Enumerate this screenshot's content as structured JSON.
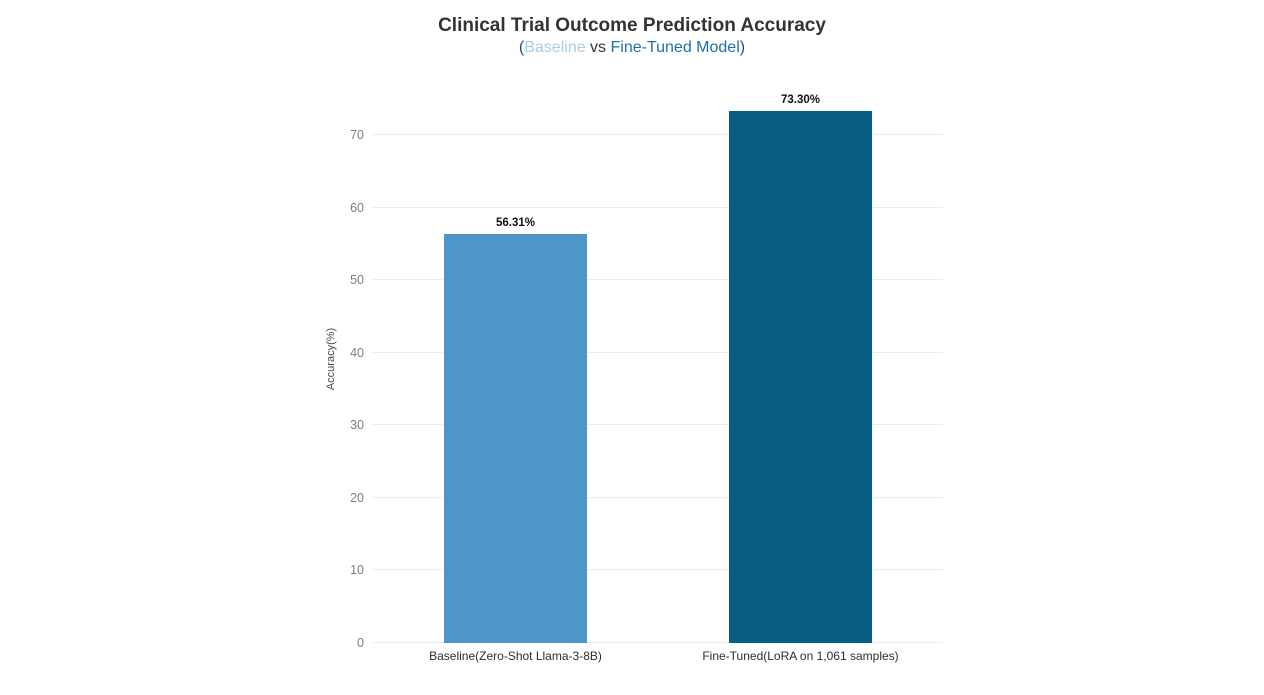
{
  "header": {
    "title": "Clinical Trial Outcome Prediction Accuracy",
    "subtitle_parts": [
      {
        "text": "(",
        "color": "#14586c"
      },
      {
        "text": "Baseline",
        "color": "#a6cdea"
      },
      {
        "text": " vs ",
        "color": "#333333"
      },
      {
        "text": "Fine-Tuned Model",
        "color": "#1e6fa9"
      },
      {
        "text": ")",
        "color": "#14586c"
      }
    ]
  },
  "chart_data": {
    "type": "bar",
    "title": "Clinical Trial Outcome Prediction Accuracy",
    "subtitle": "(Baseline vs Fine-Tuned Model)",
    "categories": [
      "Baseline(Zero-Shot Llama-3-8B)",
      "Fine-Tuned(LoRA on 1,061 samples)"
    ],
    "values": [
      56.31,
      73.3
    ],
    "value_labels": [
      "56.31%",
      "73.30%"
    ],
    "bar_colors": [
      "#4d97c8",
      "#075d84"
    ],
    "xlabel": "",
    "ylabel": "Accuracy(%)",
    "ylim": [
      0,
      75.1
    ],
    "yticks": [
      0,
      10,
      20,
      30,
      40,
      50,
      60,
      70
    ],
    "grid": true,
    "legend_position": "none"
  },
  "style_colors": {
    "background": "#ffffff",
    "grid": "#ececec",
    "tick_label": "#7d7d7d",
    "axis_title": "#4a4a4a",
    "value_label": "#111111",
    "category_label": "#2e2e2e",
    "title": "#333333"
  }
}
